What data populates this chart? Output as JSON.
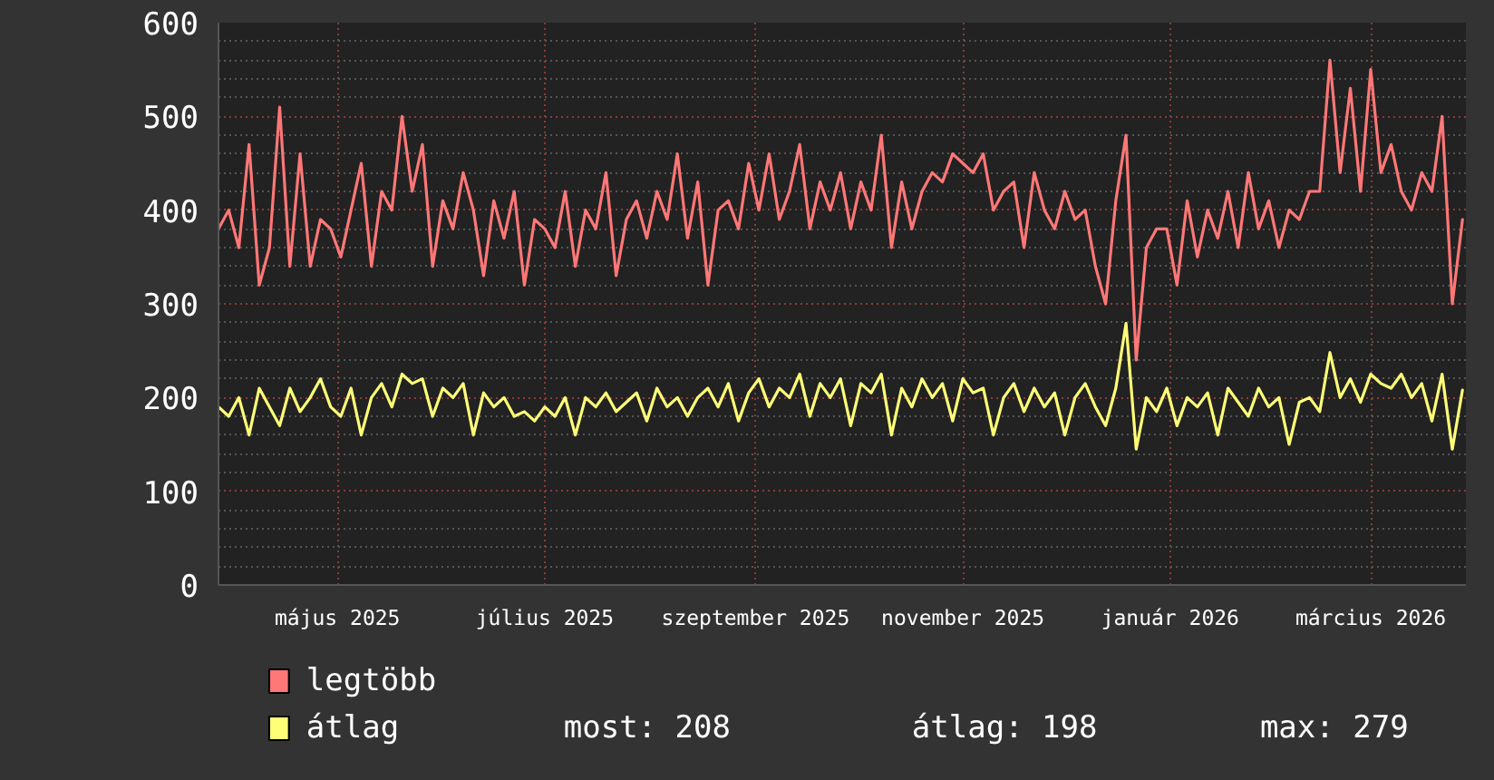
{
  "chart_data": {
    "type": "line",
    "x": [
      "2025-03-27",
      "2025-03-30",
      "2025-04-02",
      "2025-04-05",
      "2025-04-08",
      "2025-04-11",
      "2025-04-14",
      "2025-04-17",
      "2025-04-20",
      "2025-04-23",
      "2025-04-26",
      "2025-04-29",
      "2025-05-02",
      "2025-05-05",
      "2025-05-08",
      "2025-05-11",
      "2025-05-14",
      "2025-05-17",
      "2025-05-20",
      "2025-05-23",
      "2025-05-26",
      "2025-05-29",
      "2025-06-01",
      "2025-06-04",
      "2025-06-07",
      "2025-06-10",
      "2025-06-13",
      "2025-06-16",
      "2025-06-19",
      "2025-06-22",
      "2025-06-25",
      "2025-06-28",
      "2025-07-01",
      "2025-07-04",
      "2025-07-07",
      "2025-07-10",
      "2025-07-13",
      "2025-07-16",
      "2025-07-19",
      "2025-07-22",
      "2025-07-25",
      "2025-07-28",
      "2025-07-31",
      "2025-08-03",
      "2025-08-06",
      "2025-08-09",
      "2025-08-12",
      "2025-08-15",
      "2025-08-18",
      "2025-08-21",
      "2025-08-24",
      "2025-08-27",
      "2025-08-30",
      "2025-09-02",
      "2025-09-05",
      "2025-09-08",
      "2025-09-11",
      "2025-09-14",
      "2025-09-17",
      "2025-09-20",
      "2025-09-23",
      "2025-09-26",
      "2025-09-29",
      "2025-10-02",
      "2025-10-05",
      "2025-10-08",
      "2025-10-11",
      "2025-10-14",
      "2025-10-17",
      "2025-10-20",
      "2025-10-23",
      "2025-10-26",
      "2025-10-29",
      "2025-11-01",
      "2025-11-04",
      "2025-11-07",
      "2025-11-10",
      "2025-11-13",
      "2025-11-16",
      "2025-11-19",
      "2025-11-22",
      "2025-11-25",
      "2025-11-28",
      "2025-12-01",
      "2025-12-04",
      "2025-12-07",
      "2025-12-10",
      "2025-12-13",
      "2025-12-16",
      "2025-12-19",
      "2025-12-22",
      "2025-12-25",
      "2025-12-28",
      "2025-12-31",
      "2026-01-03",
      "2026-01-06",
      "2026-01-09",
      "2026-01-12",
      "2026-01-15",
      "2026-01-18",
      "2026-01-21",
      "2026-01-24",
      "2026-01-27",
      "2026-01-30",
      "2026-02-02",
      "2026-02-05",
      "2026-02-08",
      "2026-02-11",
      "2026-02-14",
      "2026-02-17",
      "2026-02-20",
      "2026-02-23",
      "2026-02-26",
      "2026-03-01",
      "2026-03-04",
      "2026-03-07",
      "2026-03-10",
      "2026-03-13",
      "2026-03-16",
      "2026-03-19",
      "2026-03-22",
      "2026-03-25",
      "2026-03-28"
    ],
    "series": [
      {
        "name": "legtöbb",
        "color": "#ff7777",
        "values": [
          380,
          400,
          360,
          470,
          320,
          360,
          510,
          340,
          460,
          340,
          390,
          380,
          350,
          400,
          450,
          340,
          420,
          400,
          500,
          420,
          470,
          340,
          410,
          380,
          440,
          400,
          330,
          410,
          370,
          420,
          320,
          390,
          380,
          360,
          420,
          340,
          400,
          380,
          440,
          330,
          390,
          410,
          370,
          420,
          390,
          460,
          370,
          430,
          320,
          400,
          410,
          380,
          450,
          400,
          460,
          390,
          420,
          470,
          380,
          430,
          400,
          440,
          380,
          430,
          400,
          480,
          360,
          430,
          380,
          420,
          440,
          430,
          460,
          450,
          440,
          460,
          400,
          420,
          430,
          360,
          440,
          400,
          380,
          420,
          390,
          400,
          340,
          300,
          410,
          480,
          240,
          360,
          380,
          380,
          320,
          410,
          350,
          400,
          370,
          420,
          360,
          440,
          380,
          410,
          360,
          400,
          390,
          420,
          420,
          560,
          440,
          530,
          420,
          550,
          440,
          470,
          420,
          400,
          440,
          420,
          500,
          300,
          390
        ]
      },
      {
        "name": "átlag",
        "color": "#ffff77",
        "values": [
          190,
          180,
          200,
          160,
          210,
          190,
          170,
          210,
          185,
          200,
          220,
          190,
          180,
          210,
          160,
          200,
          215,
          190,
          225,
          215,
          220,
          180,
          210,
          200,
          215,
          160,
          205,
          190,
          200,
          180,
          185,
          175,
          190,
          180,
          200,
          160,
          200,
          190,
          205,
          185,
          195,
          205,
          175,
          210,
          190,
          200,
          180,
          200,
          210,
          190,
          215,
          175,
          205,
          220,
          190,
          210,
          200,
          225,
          180,
          215,
          200,
          220,
          170,
          215,
          205,
          225,
          160,
          210,
          190,
          220,
          200,
          215,
          175,
          220,
          205,
          210,
          160,
          200,
          215,
          185,
          210,
          190,
          205,
          160,
          200,
          215,
          190,
          170,
          210,
          279,
          145,
          200,
          185,
          210,
          170,
          200,
          190,
          205,
          160,
          210,
          195,
          180,
          210,
          190,
          200,
          150,
          195,
          200,
          185,
          248,
          200,
          220,
          195,
          225,
          215,
          210,
          225,
          200,
          215,
          175,
          225,
          145,
          208
        ]
      }
    ],
    "xlim": [
      "2025-03-27",
      "2026-03-29"
    ],
    "xticks": [
      {
        "value": "2025-05-01",
        "label": "május 2025"
      },
      {
        "value": "2025-07-01",
        "label": "július 2025"
      },
      {
        "value": "2025-09-01",
        "label": "szeptember 2025"
      },
      {
        "value": "2025-11-01",
        "label": "november 2025"
      },
      {
        "value": "2026-01-01",
        "label": "január 2026"
      },
      {
        "value": "2026-03-01",
        "label": "március 2026"
      }
    ],
    "ylim": [
      0,
      600
    ],
    "yticks": [
      0,
      100,
      200,
      300,
      400,
      500,
      600
    ],
    "grid": true,
    "legend": "bottom",
    "line_style": "solid",
    "marker": "none",
    "annotations": [
      "most: 208",
      "átlag: 198",
      "max: 279"
    ]
  }
}
